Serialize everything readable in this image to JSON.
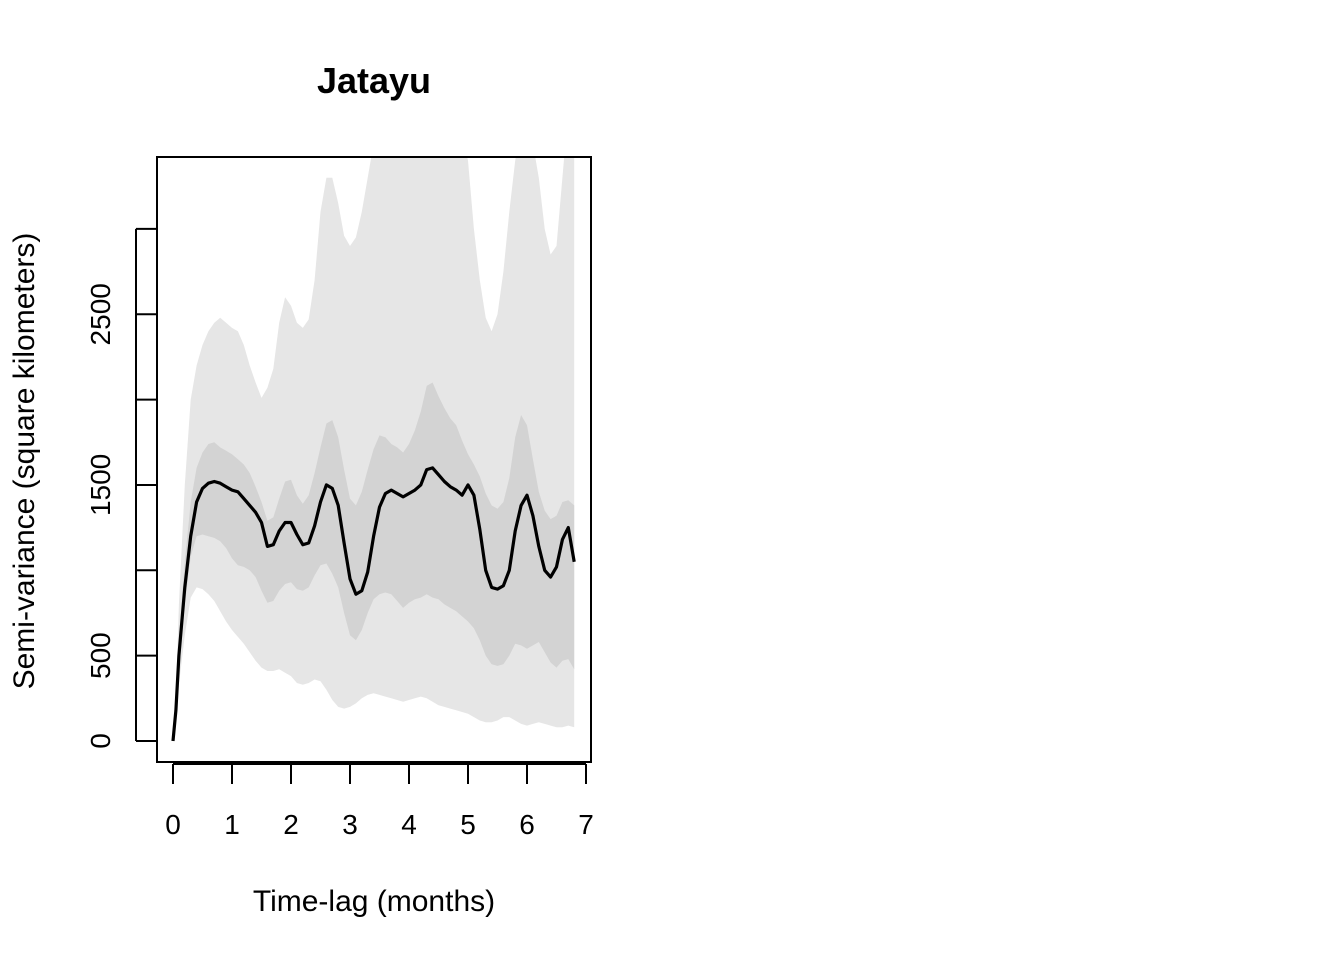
{
  "chart_data": {
    "type": "area",
    "title": "Jatayu",
    "xlabel": "Time-lag (months)",
    "ylabel": "Semi-variance (square kilometers)",
    "xlim": [
      0,
      7
    ],
    "ylim": [
      0,
      3500
    ],
    "xticks": [
      0,
      1,
      2,
      3,
      4,
      5,
      6,
      7
    ],
    "yticks": [
      0,
      500,
      1000,
      1500,
      2000,
      2500,
      3000
    ],
    "ytick_labels": [
      "0",
      "500",
      "",
      "1500",
      "",
      "2500",
      ""
    ],
    "grid": false,
    "legend": "none",
    "colors": {
      "outer_band": "#e6e6e6",
      "inner_band": "#d3d3d3",
      "line": "#000000"
    },
    "x": [
      0,
      0.05,
      0.1,
      0.2,
      0.3,
      0.4,
      0.5,
      0.6,
      0.7,
      0.8,
      0.9,
      1.0,
      1.1,
      1.2,
      1.3,
      1.4,
      1.5,
      1.6,
      1.7,
      1.8,
      1.9,
      2.0,
      2.1,
      2.2,
      2.3,
      2.4,
      2.5,
      2.6,
      2.7,
      2.8,
      2.9,
      3.0,
      3.1,
      3.2,
      3.3,
      3.4,
      3.5,
      3.6,
      3.7,
      3.8,
      3.9,
      4.0,
      4.1,
      4.2,
      4.3,
      4.4,
      4.5,
      4.6,
      4.7,
      4.8,
      4.9,
      5.0,
      5.1,
      5.2,
      5.3,
      5.4,
      5.5,
      5.6,
      5.7,
      5.8,
      5.9,
      6.0,
      6.1,
      6.2,
      6.3,
      6.4,
      6.5,
      6.6,
      6.7,
      6.8
    ],
    "series": [
      {
        "role": "estimate",
        "values": [
          0,
          180,
          500,
          900,
          1200,
          1400,
          1480,
          1510,
          1520,
          1510,
          1490,
          1470,
          1460,
          1420,
          1380,
          1340,
          1280,
          1140,
          1150,
          1230,
          1280,
          1280,
          1210,
          1150,
          1160,
          1260,
          1400,
          1500,
          1480,
          1380,
          1160,
          950,
          860,
          880,
          990,
          1200,
          1370,
          1450,
          1470,
          1450,
          1430,
          1450,
          1470,
          1500,
          1590,
          1600,
          1560,
          1520,
          1490,
          1470,
          1440,
          1500,
          1440,
          1240,
          1000,
          900,
          890,
          910,
          1000,
          1230,
          1380,
          1440,
          1320,
          1140,
          1000,
          960,
          1020,
          1180,
          1250,
          1050
        ]
      },
      {
        "role": "inner-band-lower",
        "values": [
          0,
          150,
          400,
          800,
          1080,
          1200,
          1210,
          1200,
          1190,
          1170,
          1130,
          1070,
          1030,
          1020,
          1000,
          960,
          880,
          810,
          820,
          880,
          920,
          930,
          890,
          880,
          900,
          970,
          1030,
          1040,
          980,
          900,
          750,
          620,
          590,
          650,
          750,
          830,
          860,
          870,
          860,
          820,
          780,
          810,
          830,
          840,
          860,
          840,
          830,
          800,
          780,
          760,
          730,
          700,
          660,
          590,
          500,
          450,
          440,
          450,
          500,
          570,
          560,
          540,
          560,
          580,
          520,
          460,
          430,
          470,
          480,
          420
        ]
      },
      {
        "role": "inner-band-upper",
        "values": [
          0,
          200,
          600,
          1050,
          1400,
          1600,
          1690,
          1740,
          1750,
          1720,
          1700,
          1680,
          1650,
          1620,
          1570,
          1490,
          1400,
          1290,
          1310,
          1420,
          1520,
          1530,
          1440,
          1390,
          1440,
          1570,
          1720,
          1860,
          1880,
          1780,
          1590,
          1420,
          1380,
          1460,
          1590,
          1710,
          1790,
          1780,
          1740,
          1720,
          1690,
          1740,
          1820,
          1930,
          2080,
          2100,
          2020,
          1950,
          1890,
          1850,
          1760,
          1680,
          1620,
          1550,
          1450,
          1380,
          1360,
          1400,
          1540,
          1780,
          1910,
          1850,
          1650,
          1460,
          1350,
          1300,
          1320,
          1400,
          1410,
          1380
        ]
      },
      {
        "role": "outer-band-lower",
        "values": [
          0,
          120,
          330,
          620,
          840,
          900,
          890,
          860,
          820,
          760,
          700,
          650,
          610,
          570,
          520,
          470,
          430,
          410,
          410,
          420,
          400,
          380,
          340,
          330,
          340,
          360,
          350,
          300,
          240,
          200,
          190,
          200,
          220,
          250,
          270,
          280,
          270,
          260,
          250,
          240,
          230,
          240,
          250,
          260,
          250,
          230,
          210,
          200,
          190,
          180,
          170,
          160,
          140,
          120,
          110,
          110,
          120,
          140,
          140,
          120,
          100,
          90,
          100,
          110,
          100,
          90,
          80,
          80,
          90,
          80
        ]
      },
      {
        "role": "outer-band-upper",
        "values": [
          0,
          250,
          800,
          1500,
          2000,
          2200,
          2320,
          2400,
          2450,
          2480,
          2450,
          2420,
          2400,
          2320,
          2200,
          2100,
          2010,
          2070,
          2180,
          2450,
          2600,
          2550,
          2450,
          2420,
          2470,
          2700,
          3100,
          3300,
          3300,
          3150,
          2960,
          2900,
          2950,
          3100,
          3300,
          3500,
          3600,
          3650,
          3700,
          3700,
          3680,
          3700,
          3700,
          3700,
          3700,
          3700,
          3700,
          3700,
          3650,
          3600,
          3550,
          3400,
          3000,
          2700,
          2480,
          2400,
          2500,
          2750,
          3100,
          3400,
          3600,
          3600,
          3500,
          3300,
          3000,
          2850,
          2900,
          3300,
          3700,
          3600
        ]
      }
    ]
  }
}
